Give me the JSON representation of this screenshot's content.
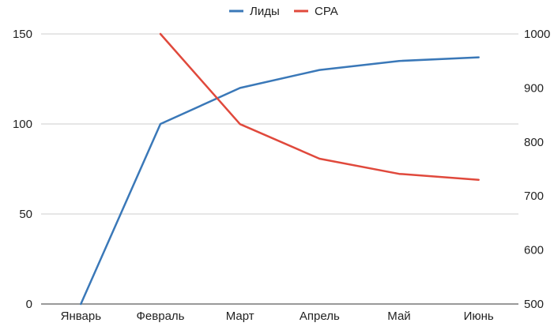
{
  "chart_data": {
    "type": "line",
    "title": "",
    "xlabel": "",
    "ylabel": "",
    "categories": [
      "Январь",
      "Февраль",
      "Март",
      "Апрель",
      "Май",
      "Июнь"
    ],
    "series": [
      {
        "name": "Лиды",
        "axis": "left",
        "color": "#3a78b8",
        "values": [
          0,
          100,
          120,
          130,
          135,
          137
        ]
      },
      {
        "name": "CPA",
        "axis": "right",
        "color": "#e0493c",
        "values": [
          null,
          1000,
          833,
          769,
          741,
          730
        ]
      }
    ],
    "y_left": {
      "ylim": [
        0,
        150
      ],
      "ticks": [
        "0",
        "50",
        "100",
        "150"
      ]
    },
    "y_right": {
      "ylim": [
        500,
        1000
      ],
      "ticks": [
        "500",
        "600",
        "700",
        "800",
        "900",
        "1000"
      ]
    },
    "grid": true,
    "legend_position": "top-center"
  }
}
